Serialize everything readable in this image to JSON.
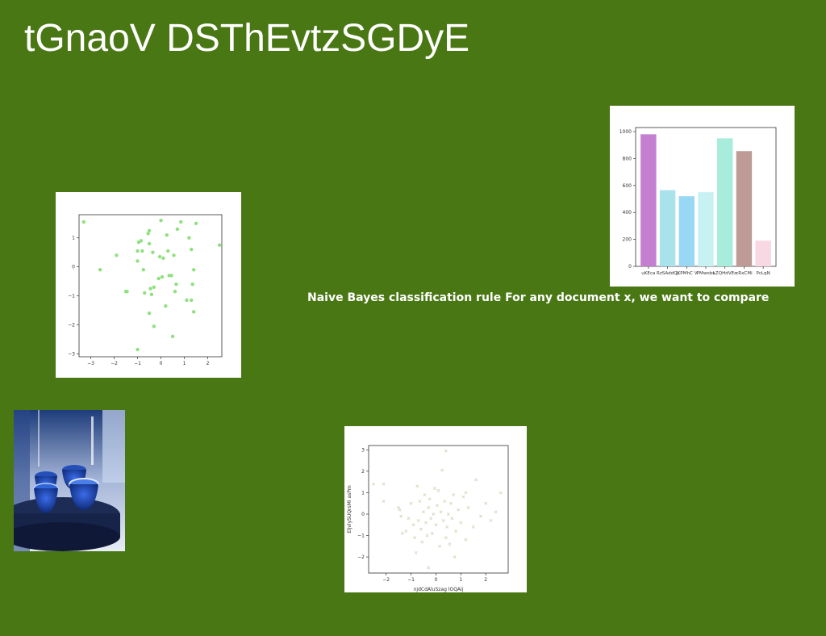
{
  "page": {
    "title": "tGnaoV DSThEvtzSGDyE",
    "caption": "Naive Bayes classification rule For any document x, we want to compare",
    "background": "#497714"
  },
  "photo": {
    "subject": "blue glass cups on a dark tray",
    "icon": "photo-image"
  },
  "chart_data": [
    {
      "type": "scatter",
      "color": "#90e080",
      "xlim": [
        -3.5,
        2.6
      ],
      "ylim": [
        -3.1,
        1.8
      ],
      "xticks": [
        -3,
        -2,
        -1,
        0,
        1,
        2
      ],
      "yticks": [
        1,
        0,
        -1,
        -2,
        -3
      ],
      "xlabel": "",
      "ylabel": "",
      "points": [
        [
          -3.3,
          1.55
        ],
        [
          -2.6,
          -0.1
        ],
        [
          -1.9,
          0.4
        ],
        [
          -1.5,
          -0.85
        ],
        [
          -1.45,
          -0.85
        ],
        [
          -1.0,
          0.55
        ],
        [
          -1.0,
          0.2
        ],
        [
          -0.95,
          0.85
        ],
        [
          -0.85,
          0.9
        ],
        [
          -0.8,
          0.55
        ],
        [
          -0.75,
          -0.1
        ],
        [
          -0.7,
          -0.9
        ],
        [
          -0.55,
          1.15
        ],
        [
          -0.5,
          1.25
        ],
        [
          -0.5,
          0.8
        ],
        [
          -0.5,
          -1.6
        ],
        [
          -0.45,
          -0.75
        ],
        [
          -0.4,
          -0.95
        ],
        [
          -0.35,
          0.5
        ],
        [
          -0.3,
          -0.7
        ],
        [
          -0.3,
          -2.05
        ],
        [
          -0.1,
          -0.4
        ],
        [
          -0.05,
          0.35
        ],
        [
          0.0,
          1.6
        ],
        [
          0.05,
          -0.35
        ],
        [
          0.1,
          0.3
        ],
        [
          0.2,
          -1.35
        ],
        [
          0.25,
          1.1
        ],
        [
          0.3,
          0.55
        ],
        [
          0.35,
          -0.3
        ],
        [
          0.45,
          -0.3
        ],
        [
          0.5,
          -2.4
        ],
        [
          0.55,
          0.4
        ],
        [
          0.6,
          -0.85
        ],
        [
          0.65,
          -0.6
        ],
        [
          0.7,
          1.3
        ],
        [
          0.85,
          1.55
        ],
        [
          1.1,
          -1.15
        ],
        [
          1.2,
          1.0
        ],
        [
          1.3,
          0.6
        ],
        [
          1.3,
          -1.15
        ],
        [
          1.35,
          -0.6
        ],
        [
          1.4,
          -0.1
        ],
        [
          1.4,
          -1.55
        ],
        [
          1.5,
          1.5
        ],
        [
          2.5,
          0.75
        ],
        [
          -1.0,
          -2.85
        ]
      ]
    },
    {
      "type": "bar",
      "categories": [
        "uKEca",
        "RzSAddOj",
        "JKPMhC V",
        "PMwobs",
        "LZQHdVEo",
        "cRxCMi",
        "PcLqN"
      ],
      "values": [
        980,
        565,
        520,
        550,
        950,
        855,
        190
      ],
      "colors": [
        "#c47fd0",
        "#a9e2ea",
        "#98d8f4",
        "#c8f1f4",
        "#a8ecdc",
        "#bf9b97",
        "#f8d8e2"
      ],
      "ylim": [
        0,
        1030
      ],
      "yticks": [
        0,
        200,
        400,
        600,
        800,
        1000
      ],
      "xlabel": "",
      "ylabel": ""
    },
    {
      "type": "scatter",
      "color": "#dcd8c0",
      "marker": "x",
      "xlim": [
        -2.7,
        2.9
      ],
      "ylim": [
        -2.75,
        3.2
      ],
      "xticks": [
        -2,
        -1,
        0,
        1,
        2
      ],
      "yticks": [
        3,
        2,
        1,
        0,
        -1,
        -2
      ],
      "xlabel": "njdCdAluSzag lOQAij",
      "ylabel": "EljvlySUQrsMI asPm",
      "points": [
        [
          -2.5,
          1.4
        ],
        [
          -2.1,
          1.4
        ],
        [
          -1.5,
          0.3
        ],
        [
          -1.45,
          0.2
        ],
        [
          -1.4,
          -0.1
        ],
        [
          -1.35,
          -0.9
        ],
        [
          -1.2,
          -0.8
        ],
        [
          -1.1,
          -0.2
        ],
        [
          -1.0,
          0.5
        ],
        [
          -0.9,
          -0.5
        ],
        [
          -0.85,
          -1.1
        ],
        [
          -0.8,
          -1.8
        ],
        [
          -0.75,
          1.3
        ],
        [
          -0.7,
          -0.3
        ],
        [
          -0.65,
          0.6
        ],
        [
          -0.6,
          -0.7
        ],
        [
          -0.55,
          -1.3
        ],
        [
          -0.5,
          0.1
        ],
        [
          -0.45,
          0.9
        ],
        [
          -0.4,
          -0.4
        ],
        [
          -0.35,
          -1.0
        ],
        [
          -0.3,
          0.3
        ],
        [
          -0.25,
          0.7
        ],
        [
          -0.2,
          -0.2
        ],
        [
          -0.15,
          -0.9
        ],
        [
          -0.1,
          0.0
        ],
        [
          -0.05,
          1.2
        ],
        [
          0.0,
          -0.5
        ],
        [
          0.05,
          0.4
        ],
        [
          0.1,
          1.1
        ],
        [
          0.15,
          -1.5
        ],
        [
          0.2,
          0.1
        ],
        [
          0.25,
          2.05
        ],
        [
          0.3,
          -0.3
        ],
        [
          0.35,
          0.6
        ],
        [
          0.4,
          -1.1
        ],
        [
          0.45,
          -0.6
        ],
        [
          0.5,
          0.0
        ],
        [
          0.55,
          -1.4
        ],
        [
          0.6,
          0.5
        ],
        [
          0.65,
          -0.2
        ],
        [
          0.7,
          0.9
        ],
        [
          0.75,
          -2.0
        ],
        [
          0.8,
          -0.8
        ],
        [
          0.9,
          0.2
        ],
        [
          1.0,
          -0.4
        ],
        [
          1.1,
          0.8
        ],
        [
          1.2,
          -1.2
        ],
        [
          1.3,
          0.3
        ],
        [
          1.5,
          -0.6
        ],
        [
          1.6,
          1.6
        ],
        [
          1.8,
          -0.1
        ],
        [
          2.0,
          0.5
        ],
        [
          2.2,
          -0.3
        ],
        [
          2.4,
          0.1
        ],
        [
          2.6,
          1.0
        ],
        [
          0.4,
          2.95
        ],
        [
          -0.3,
          -2.5
        ],
        [
          -2.1,
          0.6
        ],
        [
          1.2,
          1.0
        ]
      ]
    }
  ]
}
